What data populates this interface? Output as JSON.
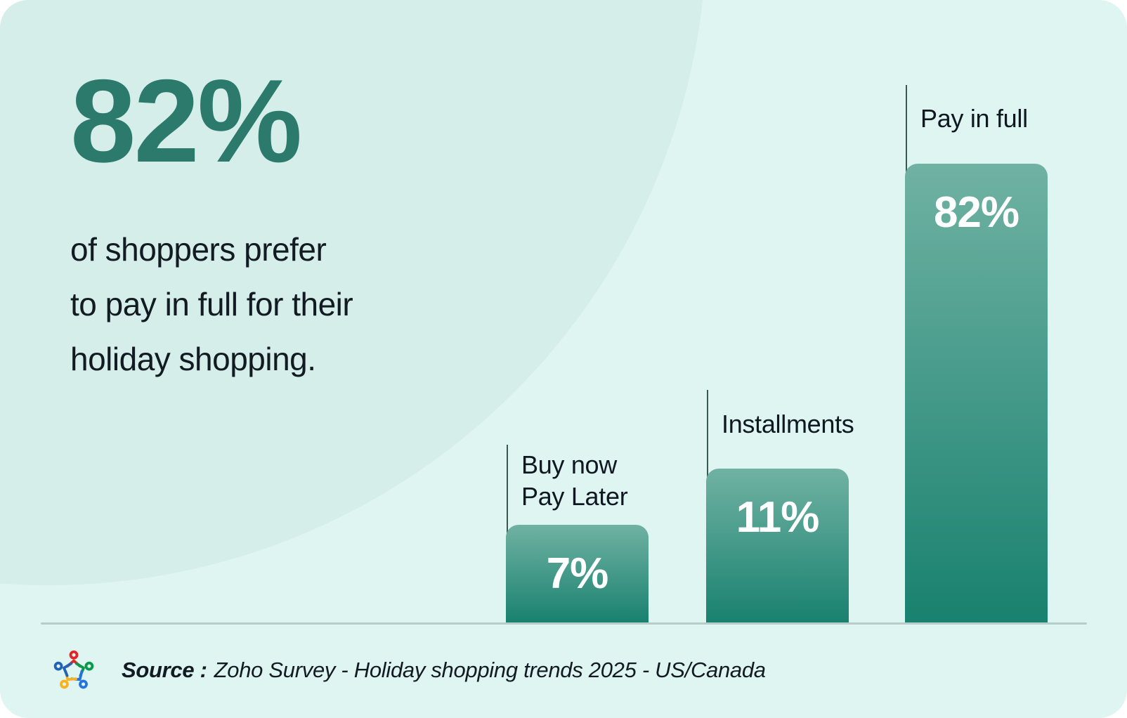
{
  "headline": {
    "stat": "82%",
    "lines": [
      "of shoppers prefer",
      "to pay in full for their",
      "holiday shopping."
    ]
  },
  "chart_data": {
    "type": "bar",
    "categories": [
      "Buy now Pay Later",
      "Installments",
      "Pay in full"
    ],
    "values": [
      7,
      11,
      82
    ],
    "unit": "%",
    "value_labels": [
      "7%",
      "11%",
      "82%"
    ],
    "category_label_lines": [
      [
        "Buy now",
        "Pay Later"
      ],
      [
        "Installments"
      ],
      [
        "Pay in full"
      ]
    ],
    "value_label_position": "inside-top",
    "orientation": "vertical",
    "grid": "off",
    "baseline": "single bottom axis line",
    "bar_color_gradient_top": "#70B2A3",
    "bar_color_gradient_bottom": "#19816F"
  },
  "source": {
    "prefix": "Source :",
    "text": "Zoho Survey - Holiday shopping trends 2025  - US/Canada",
    "logo": "zoho-survey-logo"
  },
  "colors": {
    "card_background": "#DFF5F2",
    "background_circle": "#D5EEEA",
    "accent_teal": "#2B7A6C",
    "text_dark": "#121A22",
    "baseline": "#B6CDC9",
    "tick_line": "#3A5953",
    "bar_value_text": "#FFFFFF",
    "logo_red": "#E42527",
    "logo_green": "#089949",
    "logo_blue_bright": "#2573E0",
    "logo_yellow": "#F9B21D",
    "logo_blue": "#2363B5"
  }
}
